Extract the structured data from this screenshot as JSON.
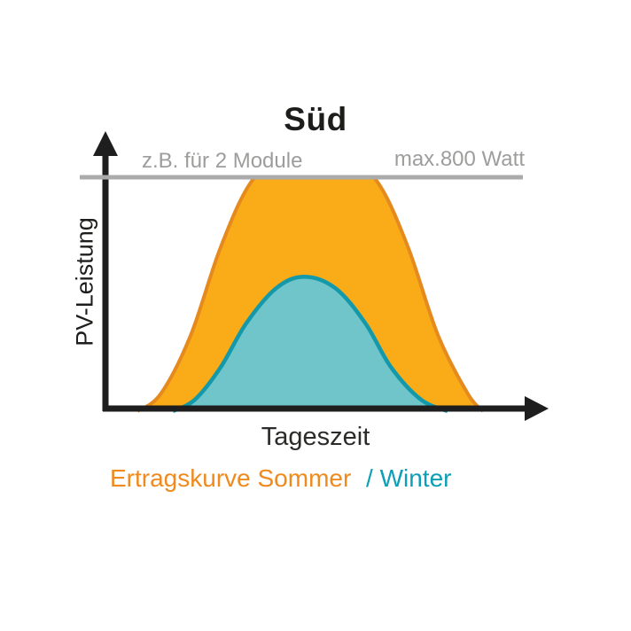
{
  "header": {
    "title": "Süd"
  },
  "annotations": {
    "modules_note": "z.B. für 2 Module",
    "max_watt": "max.800 Watt"
  },
  "axes": {
    "y_label": "PV-Leistung",
    "x_label": "Tageszeit"
  },
  "legend": {
    "summer": "Ertragskurve Sommer",
    "winter": "/ Winter"
  },
  "colors": {
    "title_text": "#1d1d1b",
    "muted_text": "#9d9d9c",
    "axis": "#1e1e1e",
    "max_line": "#ababab",
    "summer_fill": "#f9ac18",
    "summer_stroke": "#e58a1e",
    "winter_fill": "#6fc5c9",
    "winter_stroke": "#1499ab",
    "legend_summer_text": "#ef8a1e",
    "legend_winter_text": "#0c9fb5"
  },
  "chart_data": {
    "type": "area",
    "title": "Süd",
    "xlabel": "Tageszeit",
    "ylabel": "PV-Leistung",
    "x_unit": "fraction of day axis (no tick labels shown)",
    "ylim": [
      0,
      800
    ],
    "grid": false,
    "legend_position": "below",
    "max_line": {
      "value": 800,
      "unit": "Watt",
      "label": "max.800 Watt",
      "note": "z.B. für 2 Module",
      "color": "#ababab"
    },
    "series": [
      {
        "id": "sommer",
        "name": "Ertragskurve Sommer",
        "fill": "#f9ac18",
        "stroke": "#e58a1e",
        "clip_at_max": true,
        "points": [
          [
            0.075,
            0
          ],
          [
            0.13,
            60
          ],
          [
            0.2,
            260
          ],
          [
            0.27,
            560
          ],
          [
            0.34,
            780
          ],
          [
            0.42,
            880
          ],
          [
            0.49,
            900
          ],
          [
            0.56,
            880
          ],
          [
            0.64,
            780
          ],
          [
            0.71,
            560
          ],
          [
            0.78,
            260
          ],
          [
            0.85,
            60
          ],
          [
            0.886,
            0
          ]
        ]
      },
      {
        "id": "winter",
        "name": "Winter",
        "fill": "#6fc5c9",
        "stroke": "#1499ab",
        "clip_at_max": false,
        "points": [
          [
            0.158,
            0
          ],
          [
            0.21,
            40
          ],
          [
            0.27,
            150
          ],
          [
            0.33,
            300
          ],
          [
            0.4,
            420
          ],
          [
            0.466,
            460
          ],
          [
            0.54,
            420
          ],
          [
            0.61,
            300
          ],
          [
            0.67,
            150
          ],
          [
            0.74,
            40
          ],
          [
            0.803,
            0
          ]
        ]
      }
    ]
  }
}
